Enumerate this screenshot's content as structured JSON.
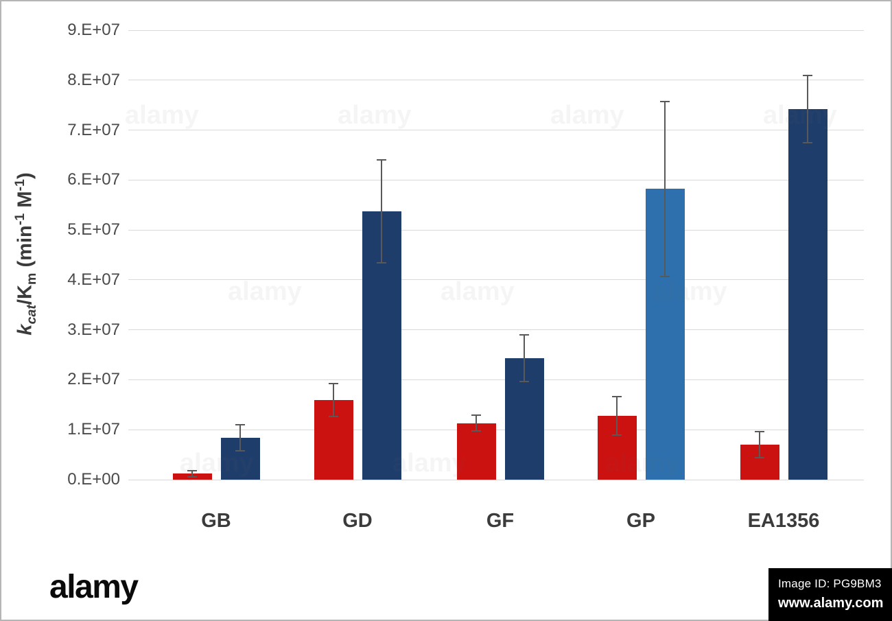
{
  "watermark": {
    "brand": "alamy",
    "image_id_label": "Image ID: PG9BM3",
    "url": "www.alamy.com"
  },
  "chart_data": {
    "type": "bar",
    "title": "",
    "xlabel": "",
    "ylabel": "kcat/Km (min-1 M-1)",
    "ylabel_rich": [
      {
        "text": "k",
        "style": "italic"
      },
      {
        "text": "cat",
        "style": "subitalic"
      },
      {
        "text": "/K",
        "style": "normal"
      },
      {
        "text": "m",
        "style": "sub"
      },
      {
        "text": " (min",
        "style": "normal"
      },
      {
        "text": "-1",
        "style": "sup"
      },
      {
        "text": " M",
        "style": "normal"
      },
      {
        "text": "-1",
        "style": "sup"
      },
      {
        "text": ")",
        "style": "normal"
      }
    ],
    "categories": [
      "GB",
      "GD",
      "GF",
      "GP",
      "EA1356"
    ],
    "series": [
      {
        "name": "red",
        "color": "#cc1111",
        "values": [
          1200000.0,
          16000000.0,
          11300000.0,
          12800000.0,
          7000000.0
        ],
        "errors": [
          600000.0,
          3300000.0,
          1600000.0,
          3800000.0,
          2600000.0
        ]
      },
      {
        "name": "blue",
        "color": "#1f3d6b",
        "bar_colors": [
          "#1f3d6b",
          "#1f3d6b",
          "#1f3d6b",
          "#2d70ad",
          "#1f3d6b"
        ],
        "values": [
          8400000.0,
          53700000.0,
          24300000.0,
          58200000.0,
          74200000.0
        ],
        "errors": [
          2600000.0,
          10300000.0,
          4700000.0,
          17500000.0,
          6700000.0
        ]
      }
    ],
    "ylim": [
      0,
      90000000.0
    ],
    "ytick_step": 10000000.0,
    "ytick_labels": [
      "0.E+00",
      "1.E+07",
      "2.E+07",
      "3.E+07",
      "4.E+07",
      "5.E+07",
      "6.E+07",
      "7.E+07",
      "8.E+07",
      "9.E+07"
    ],
    "grid": "horizontal",
    "legend": "none",
    "error_bars": true
  }
}
